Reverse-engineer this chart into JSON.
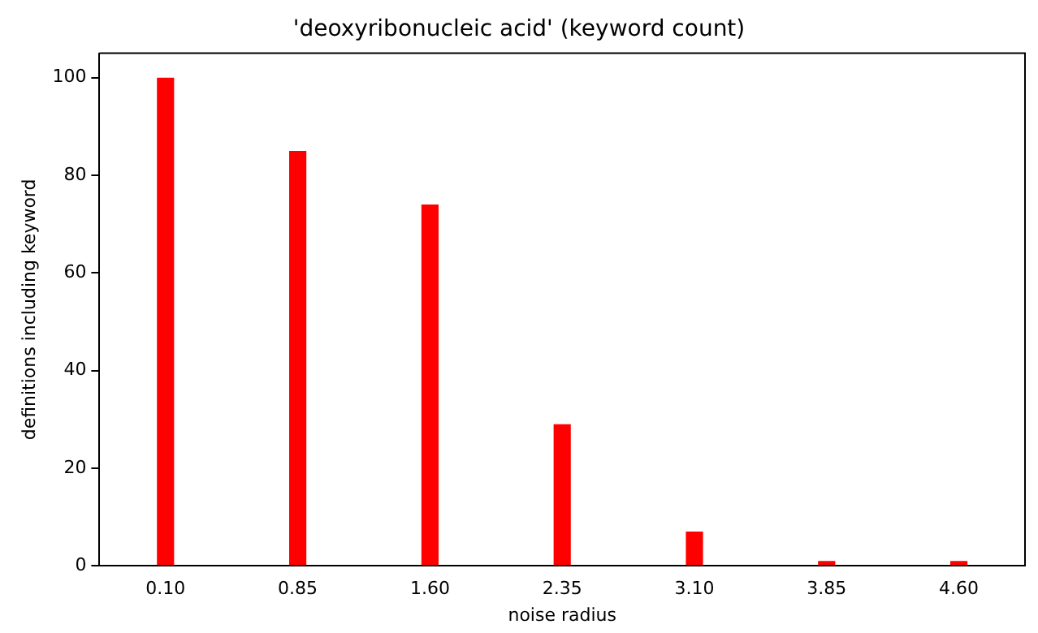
{
  "chart_data": {
    "type": "bar",
    "title": "'deoxyribonucleic acid' (keyword count)",
    "xlabel": "noise radius",
    "ylabel": "definitions including keyword",
    "categories": [
      "0.10",
      "0.85",
      "1.60",
      "2.35",
      "3.10",
      "3.85",
      "4.60"
    ],
    "values": [
      100,
      85,
      74,
      29,
      7,
      1,
      1
    ],
    "color": "#ff0000",
    "ylim": [
      0,
      105
    ],
    "yticks": [
      0,
      20,
      40,
      60,
      80,
      100
    ],
    "grid": false,
    "legend": false
  }
}
